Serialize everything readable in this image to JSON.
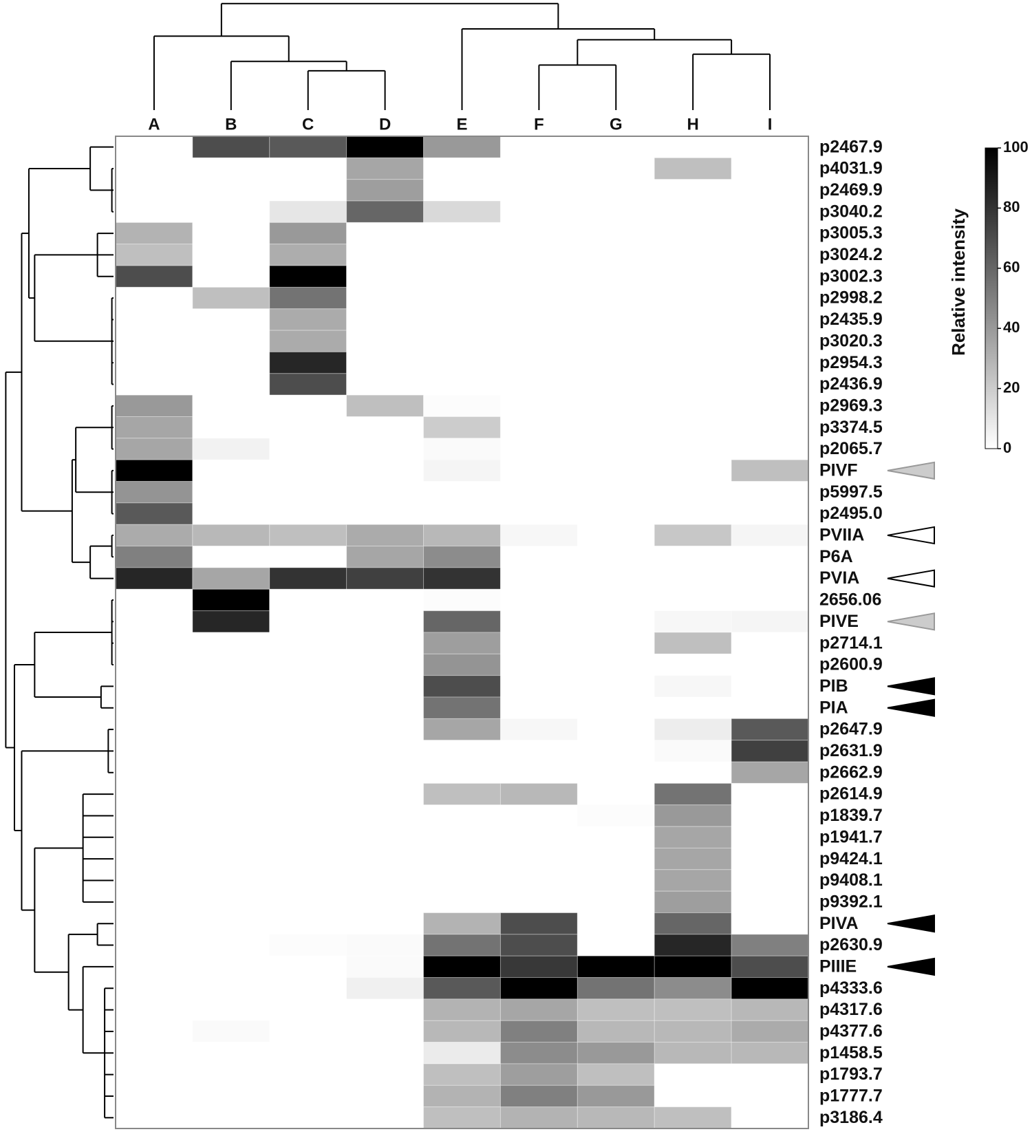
{
  "chart_data": {
    "type": "heatmap",
    "columns": [
      "A",
      "B",
      "C",
      "D",
      "E",
      "F",
      "G",
      "H",
      "I"
    ],
    "rows": [
      "p2467.9",
      "p4031.9",
      "p2469.9",
      "p3040.2",
      "p3005.3",
      "p3024.2",
      "p3002.3",
      "p2998.2",
      "p2435.9",
      "p3020.3",
      "p2954.3",
      "p2436.9",
      "p2969.3",
      "p3374.5",
      "p2065.7",
      "PIVF",
      "p5997.5",
      "p2495.0",
      "PVIIA",
      "P6A",
      "PVIA",
      "2656.06",
      "PIVE",
      "p2714.1",
      "p2600.9",
      "PIB",
      "PIA",
      "p2647.9",
      "p2631.9",
      "p2662.9",
      "p2614.9",
      "p1839.7",
      "p1941.7",
      "p9424.1",
      "p9408.1",
      "p9392.1",
      "PIVA",
      "p2630.9",
      "PIIIE",
      "p4333.6",
      "p4317.6",
      "p4377.6",
      "p1458.5",
      "p1793.7",
      "p1777.7",
      "p3186.4"
    ],
    "values": [
      [
        0,
        70,
        65,
        100,
        40,
        0,
        0,
        0,
        0
      ],
      [
        0,
        0,
        0,
        35,
        0,
        0,
        0,
        25,
        0
      ],
      [
        0,
        0,
        0,
        38,
        0,
        0,
        0,
        0,
        0
      ],
      [
        0,
        0,
        10,
        60,
        15,
        0,
        0,
        0,
        0
      ],
      [
        30,
        0,
        40,
        0,
        0,
        0,
        0,
        0,
        0
      ],
      [
        25,
        0,
        32,
        0,
        0,
        0,
        0,
        0,
        0
      ],
      [
        70,
        0,
        100,
        0,
        0,
        0,
        0,
        0,
        0
      ],
      [
        0,
        25,
        55,
        0,
        0,
        0,
        0,
        0,
        0
      ],
      [
        0,
        0,
        33,
        0,
        0,
        0,
        0,
        0,
        0
      ],
      [
        0,
        0,
        33,
        0,
        0,
        0,
        0,
        0,
        0
      ],
      [
        0,
        0,
        85,
        0,
        0,
        0,
        0,
        0,
        0
      ],
      [
        0,
        0,
        70,
        0,
        0,
        0,
        0,
        0,
        0
      ],
      [
        40,
        0,
        0,
        25,
        1,
        0,
        0,
        0,
        0
      ],
      [
        35,
        0,
        0,
        0,
        20,
        0,
        0,
        0,
        0
      ],
      [
        35,
        5,
        0,
        0,
        2,
        0,
        0,
        0,
        0
      ],
      [
        100,
        0,
        0,
        0,
        4,
        0,
        0,
        0,
        25
      ],
      [
        42,
        0,
        0,
        0,
        0,
        0,
        0,
        0,
        0
      ],
      [
        65,
        0,
        0,
        0,
        0,
        0,
        0,
        0,
        0
      ],
      [
        33,
        28,
        25,
        33,
        28,
        3,
        0,
        22,
        4
      ],
      [
        50,
        0,
        0,
        35,
        45,
        0,
        0,
        0,
        0
      ],
      [
        85,
        35,
        80,
        75,
        80,
        0,
        0,
        0,
        0
      ],
      [
        0,
        100,
        0,
        0,
        1,
        0,
        0,
        0,
        0
      ],
      [
        0,
        85,
        0,
        0,
        60,
        0,
        0,
        3,
        4
      ],
      [
        0,
        0,
        0,
        0,
        38,
        0,
        0,
        25,
        0
      ],
      [
        0,
        0,
        0,
        0,
        42,
        0,
        0,
        0,
        0
      ],
      [
        0,
        0,
        0,
        0,
        70,
        0,
        0,
        3,
        0
      ],
      [
        0,
        0,
        0,
        0,
        55,
        0,
        0,
        0,
        0
      ],
      [
        0,
        0,
        0,
        0,
        35,
        3,
        0,
        7,
        65
      ],
      [
        0,
        0,
        0,
        0,
        0,
        0,
        0,
        2,
        75
      ],
      [
        0,
        0,
        0,
        0,
        0,
        0,
        0,
        0,
        35
      ],
      [
        0,
        0,
        0,
        0,
        25,
        28,
        0,
        55,
        0
      ],
      [
        0,
        0,
        0,
        0,
        0,
        0,
        1,
        40,
        0
      ],
      [
        0,
        0,
        0,
        0,
        0,
        0,
        0,
        35,
        0
      ],
      [
        0,
        0,
        0,
        0,
        0,
        0,
        0,
        35,
        0
      ],
      [
        0,
        0,
        0,
        0,
        0,
        0,
        0,
        35,
        0
      ],
      [
        0,
        0,
        0,
        0,
        0,
        0,
        0,
        38,
        0
      ],
      [
        0,
        0,
        0,
        0,
        30,
        70,
        0,
        60,
        0
      ],
      [
        0,
        0,
        1,
        2,
        55,
        70,
        0,
        85,
        50
      ],
      [
        0,
        0,
        0,
        2,
        100,
        78,
        100,
        100,
        70
      ],
      [
        0,
        0,
        0,
        6,
        65,
        100,
        55,
        45,
        100
      ],
      [
        0,
        0,
        0,
        0,
        30,
        35,
        25,
        25,
        28
      ],
      [
        0,
        2,
        0,
        0,
        28,
        50,
        28,
        28,
        33
      ],
      [
        0,
        0,
        0,
        0,
        8,
        45,
        40,
        28,
        28
      ],
      [
        0,
        0,
        0,
        0,
        25,
        38,
        25,
        0,
        0
      ],
      [
        0,
        0,
        0,
        0,
        30,
        50,
        40,
        0,
        0
      ],
      [
        0,
        0,
        0,
        0,
        25,
        30,
        28,
        25,
        0
      ]
    ],
    "colorbar_label": "Relative intensity",
    "zlim": [
      0,
      100
    ],
    "zticks": [
      0,
      20,
      40,
      60,
      80,
      100
    ],
    "low_color": "#ffffff",
    "high_color": "#000000",
    "markers": [
      {
        "row": "PIVF",
        "fill": "#cccccc",
        "stroke": "#999999"
      },
      {
        "row": "PVIIA",
        "fill": "#ffffff",
        "stroke": "#000000"
      },
      {
        "row": "PVIA",
        "fill": "#ffffff",
        "stroke": "#000000"
      },
      {
        "row": "PIVE",
        "fill": "#cccccc",
        "stroke": "#999999"
      },
      {
        "row": "PIB",
        "fill": "#000000",
        "stroke": "#000000"
      },
      {
        "row": "PIA",
        "fill": "#000000",
        "stroke": "#000000"
      },
      {
        "row": "PIVA",
        "fill": "#000000",
        "stroke": "#000000"
      },
      {
        "row": "PIIIE",
        "fill": "#000000",
        "stroke": "#000000"
      }
    ]
  }
}
